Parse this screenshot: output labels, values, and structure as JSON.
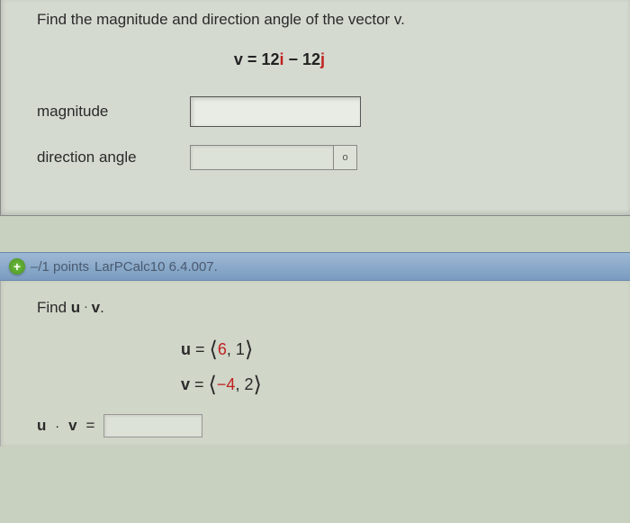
{
  "question1": {
    "prompt": "Find the magnitude and direction angle of the vector v.",
    "equation_prefix": "v = ",
    "coef1": "12",
    "unit1": "i",
    "op": " − ",
    "coef2": "12",
    "unit2": "j",
    "fields": {
      "magnitude_label": "magnitude",
      "direction_label": "direction angle",
      "degree_symbol": "o"
    }
  },
  "points_bar": {
    "points_text": "–/1 points",
    "source": "LarPCalc10 6.4.007."
  },
  "question2": {
    "prompt_prefix": "Find ",
    "u_label": "u",
    "dot": " · ",
    "v_label": "v",
    "period": ".",
    "u_eq_prefix": "u",
    "eq": " = ",
    "u_val1": "6",
    "u_val2": "1",
    "v_eq_prefix": "v",
    "v_val1": "−4",
    "v_val2": "2",
    "result_label_u": "u",
    "result_label_v": "v",
    "result_eq": " ="
  }
}
